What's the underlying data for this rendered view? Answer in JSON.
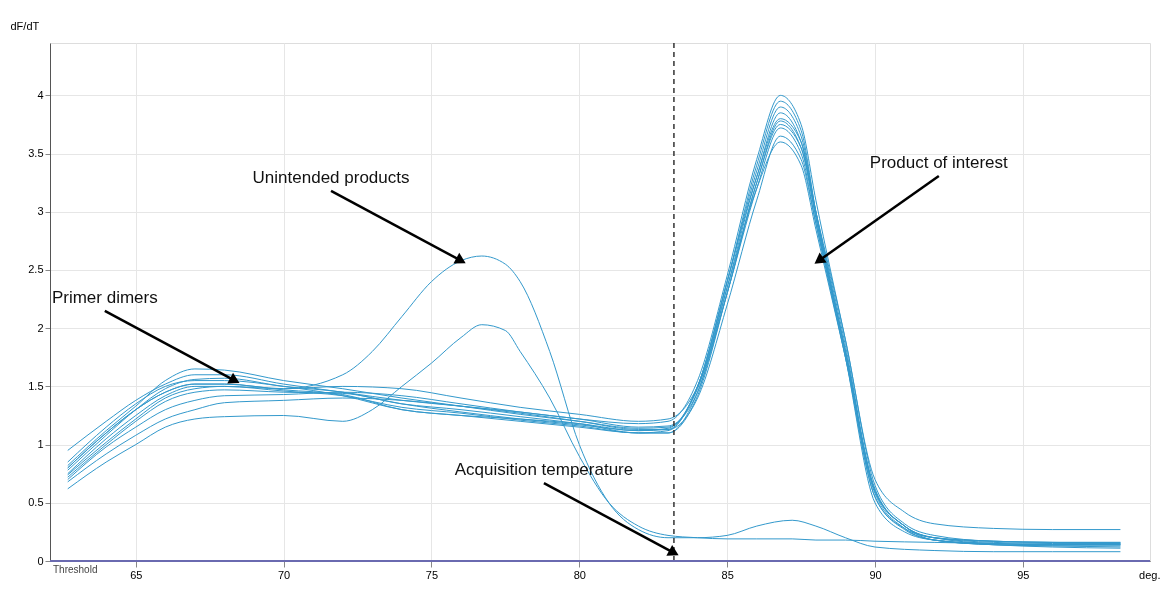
{
  "chart_data": {
    "type": "line",
    "xlabel": "deg.",
    "ylabel": "dF/dT",
    "x": [
      62.7,
      64,
      65,
      66,
      67,
      68,
      70,
      72,
      74,
      76,
      78,
      80,
      82,
      83,
      84,
      85,
      86,
      86.8,
      87.5,
      88,
      89,
      90,
      91,
      92,
      94,
      96,
      98.3
    ],
    "xlim": [
      62.1,
      99.3
    ],
    "xticks": [
      65,
      70,
      75,
      80,
      85,
      90,
      95
    ],
    "ylim": [
      0,
      4.45
    ],
    "yticks": [
      0,
      0.5,
      1,
      1.5,
      2,
      2.5,
      3,
      3.5,
      4
    ],
    "grid": true,
    "legend": false,
    "marker": "none",
    "line_style": "solid",
    "series": [
      {
        "color": "#3399cc",
        "values": [
          0.95,
          1.2,
          1.38,
          1.52,
          1.6,
          1.6,
          1.52,
          1.45,
          1.38,
          1.33,
          1.28,
          1.22,
          1.18,
          1.2,
          1.55,
          2.45,
          3.45,
          4.0,
          3.75,
          3.1,
          1.9,
          0.7,
          0.42,
          0.32,
          0.28,
          0.27,
          0.27
        ]
      },
      {
        "color": "#3399cc",
        "values": [
          0.85,
          1.15,
          1.35,
          1.5,
          1.55,
          1.55,
          1.5,
          1.42,
          1.3,
          1.25,
          1.22,
          1.18,
          1.12,
          1.13,
          1.5,
          2.4,
          3.4,
          3.95,
          3.7,
          3.0,
          1.8,
          0.6,
          0.3,
          0.2,
          0.17,
          0.16,
          0.16
        ]
      },
      {
        "color": "#3399cc",
        "values": [
          0.8,
          1.1,
          1.3,
          1.45,
          1.52,
          1.52,
          1.47,
          1.43,
          1.3,
          1.25,
          1.2,
          1.15,
          1.1,
          1.12,
          1.5,
          2.4,
          3.35,
          3.9,
          3.65,
          3.0,
          1.8,
          0.55,
          0.28,
          0.2,
          0.17,
          0.16,
          0.15
        ]
      },
      {
        "color": "#3399cc",
        "values": [
          0.75,
          1.05,
          1.25,
          1.42,
          1.5,
          1.5,
          1.46,
          1.42,
          1.32,
          1.27,
          1.21,
          1.16,
          1.1,
          1.1,
          1.45,
          2.35,
          3.3,
          3.85,
          3.6,
          2.95,
          1.75,
          0.5,
          0.25,
          0.18,
          0.15,
          0.14,
          0.14
        ]
      },
      {
        "color": "#3399cc",
        "values": [
          0.78,
          1.08,
          1.3,
          1.48,
          1.56,
          1.57,
          1.5,
          1.45,
          1.35,
          1.28,
          1.22,
          1.17,
          1.12,
          1.14,
          1.5,
          2.4,
          3.3,
          3.8,
          3.6,
          3.0,
          1.85,
          0.6,
          0.3,
          0.2,
          0.16,
          0.15,
          0.15
        ]
      },
      {
        "color": "#3399cc",
        "values": [
          0.72,
          1.0,
          1.2,
          1.37,
          1.45,
          1.47,
          1.45,
          1.44,
          1.35,
          1.3,
          1.24,
          1.18,
          1.1,
          1.1,
          1.42,
          2.3,
          3.25,
          3.78,
          3.55,
          2.95,
          1.8,
          0.58,
          0.28,
          0.18,
          0.14,
          0.13,
          0.13
        ]
      },
      {
        "color": "#3399cc",
        "values": [
          0.7,
          0.98,
          1.15,
          1.3,
          1.38,
          1.42,
          1.43,
          1.45,
          1.42,
          1.35,
          1.28,
          1.22,
          1.15,
          1.16,
          1.45,
          2.3,
          3.2,
          3.72,
          3.5,
          2.9,
          1.75,
          0.55,
          0.27,
          0.18,
          0.14,
          0.13,
          0.12
        ]
      },
      {
        "color": "#3399cc",
        "values": [
          0.68,
          0.92,
          1.08,
          1.22,
          1.3,
          1.36,
          1.38,
          1.4,
          1.38,
          1.33,
          1.27,
          1.2,
          1.13,
          1.13,
          1.4,
          2.2,
          3.1,
          3.65,
          3.45,
          2.9,
          1.8,
          0.6,
          0.3,
          0.18,
          0.14,
          0.12,
          0.11
        ]
      },
      {
        "color": "#3399cc",
        "values": [
          0.82,
          1.12,
          1.33,
          1.55,
          1.65,
          1.64,
          1.55,
          1.48,
          1.4,
          1.33,
          1.26,
          1.2,
          1.14,
          1.15,
          1.48,
          2.35,
          3.2,
          3.6,
          3.4,
          2.85,
          1.75,
          0.62,
          0.3,
          0.2,
          0.15,
          0.14,
          0.14
        ]
      },
      {
        "color": "#3399cc",
        "values": [
          0.74,
          1.02,
          1.22,
          1.4,
          1.48,
          1.5,
          1.48,
          1.5,
          1.48,
          1.4,
          1.32,
          1.26,
          1.2,
          1.22,
          1.5,
          2.3,
          3.25,
          3.75,
          3.55,
          3.0,
          1.9,
          0.65,
          0.32,
          0.22,
          0.17,
          0.16,
          0.16
        ]
      },
      {
        "color": "#3399cc",
        "x": [
          62.7,
          64,
          65,
          66,
          67,
          68,
          70,
          72,
          73,
          74,
          75,
          76,
          76.7,
          77.5,
          78,
          79,
          80,
          81,
          82,
          83,
          84,
          85,
          86,
          87.2,
          88,
          89,
          90,
          92,
          94,
          96,
          98.3
        ],
        "values": [
          0.8,
          1.1,
          1.3,
          1.45,
          1.52,
          1.52,
          1.48,
          1.6,
          1.8,
          2.1,
          2.4,
          2.58,
          2.62,
          2.55,
          2.4,
          1.8,
          1.0,
          0.5,
          0.27,
          0.2,
          0.2,
          0.22,
          0.3,
          0.35,
          0.3,
          0.2,
          0.12,
          0.09,
          0.08,
          0.08,
          0.08
        ]
      },
      {
        "color": "#3399cc",
        "x": [
          62.7,
          64,
          65,
          66,
          67,
          68,
          70,
          72,
          73,
          74,
          75,
          76,
          76.7,
          77.5,
          78,
          79,
          80,
          81,
          82,
          83,
          84,
          85,
          86,
          87.2,
          88,
          89,
          90,
          92,
          94,
          96,
          98.3
        ],
        "values": [
          0.62,
          0.85,
          1.0,
          1.15,
          1.22,
          1.24,
          1.25,
          1.2,
          1.3,
          1.5,
          1.7,
          1.92,
          2.03,
          1.98,
          1.8,
          1.4,
          0.9,
          0.5,
          0.3,
          0.22,
          0.2,
          0.19,
          0.19,
          0.19,
          0.18,
          0.18,
          0.17,
          0.16,
          0.15,
          0.14,
          0.14
        ]
      }
    ],
    "ref_lines": [
      {
        "axis": "x",
        "value": 83.2,
        "color": "#333333",
        "line_style": "dashed"
      },
      {
        "axis": "y",
        "value": 0,
        "label": "Threshold",
        "color": "#6a6ab0",
        "line_style": "solid"
      }
    ],
    "annotations": [
      {
        "text": "Primer dimers",
        "x": 68.35,
        "y": 1.55
      },
      {
        "text": "Unintended products",
        "x": 76.0,
        "y": 2.58
      },
      {
        "text": "Product of interest",
        "x": 88.1,
        "y": 2.58
      },
      {
        "text": "Acquisition temperature",
        "x": 83.2,
        "y": 0.07
      }
    ]
  }
}
